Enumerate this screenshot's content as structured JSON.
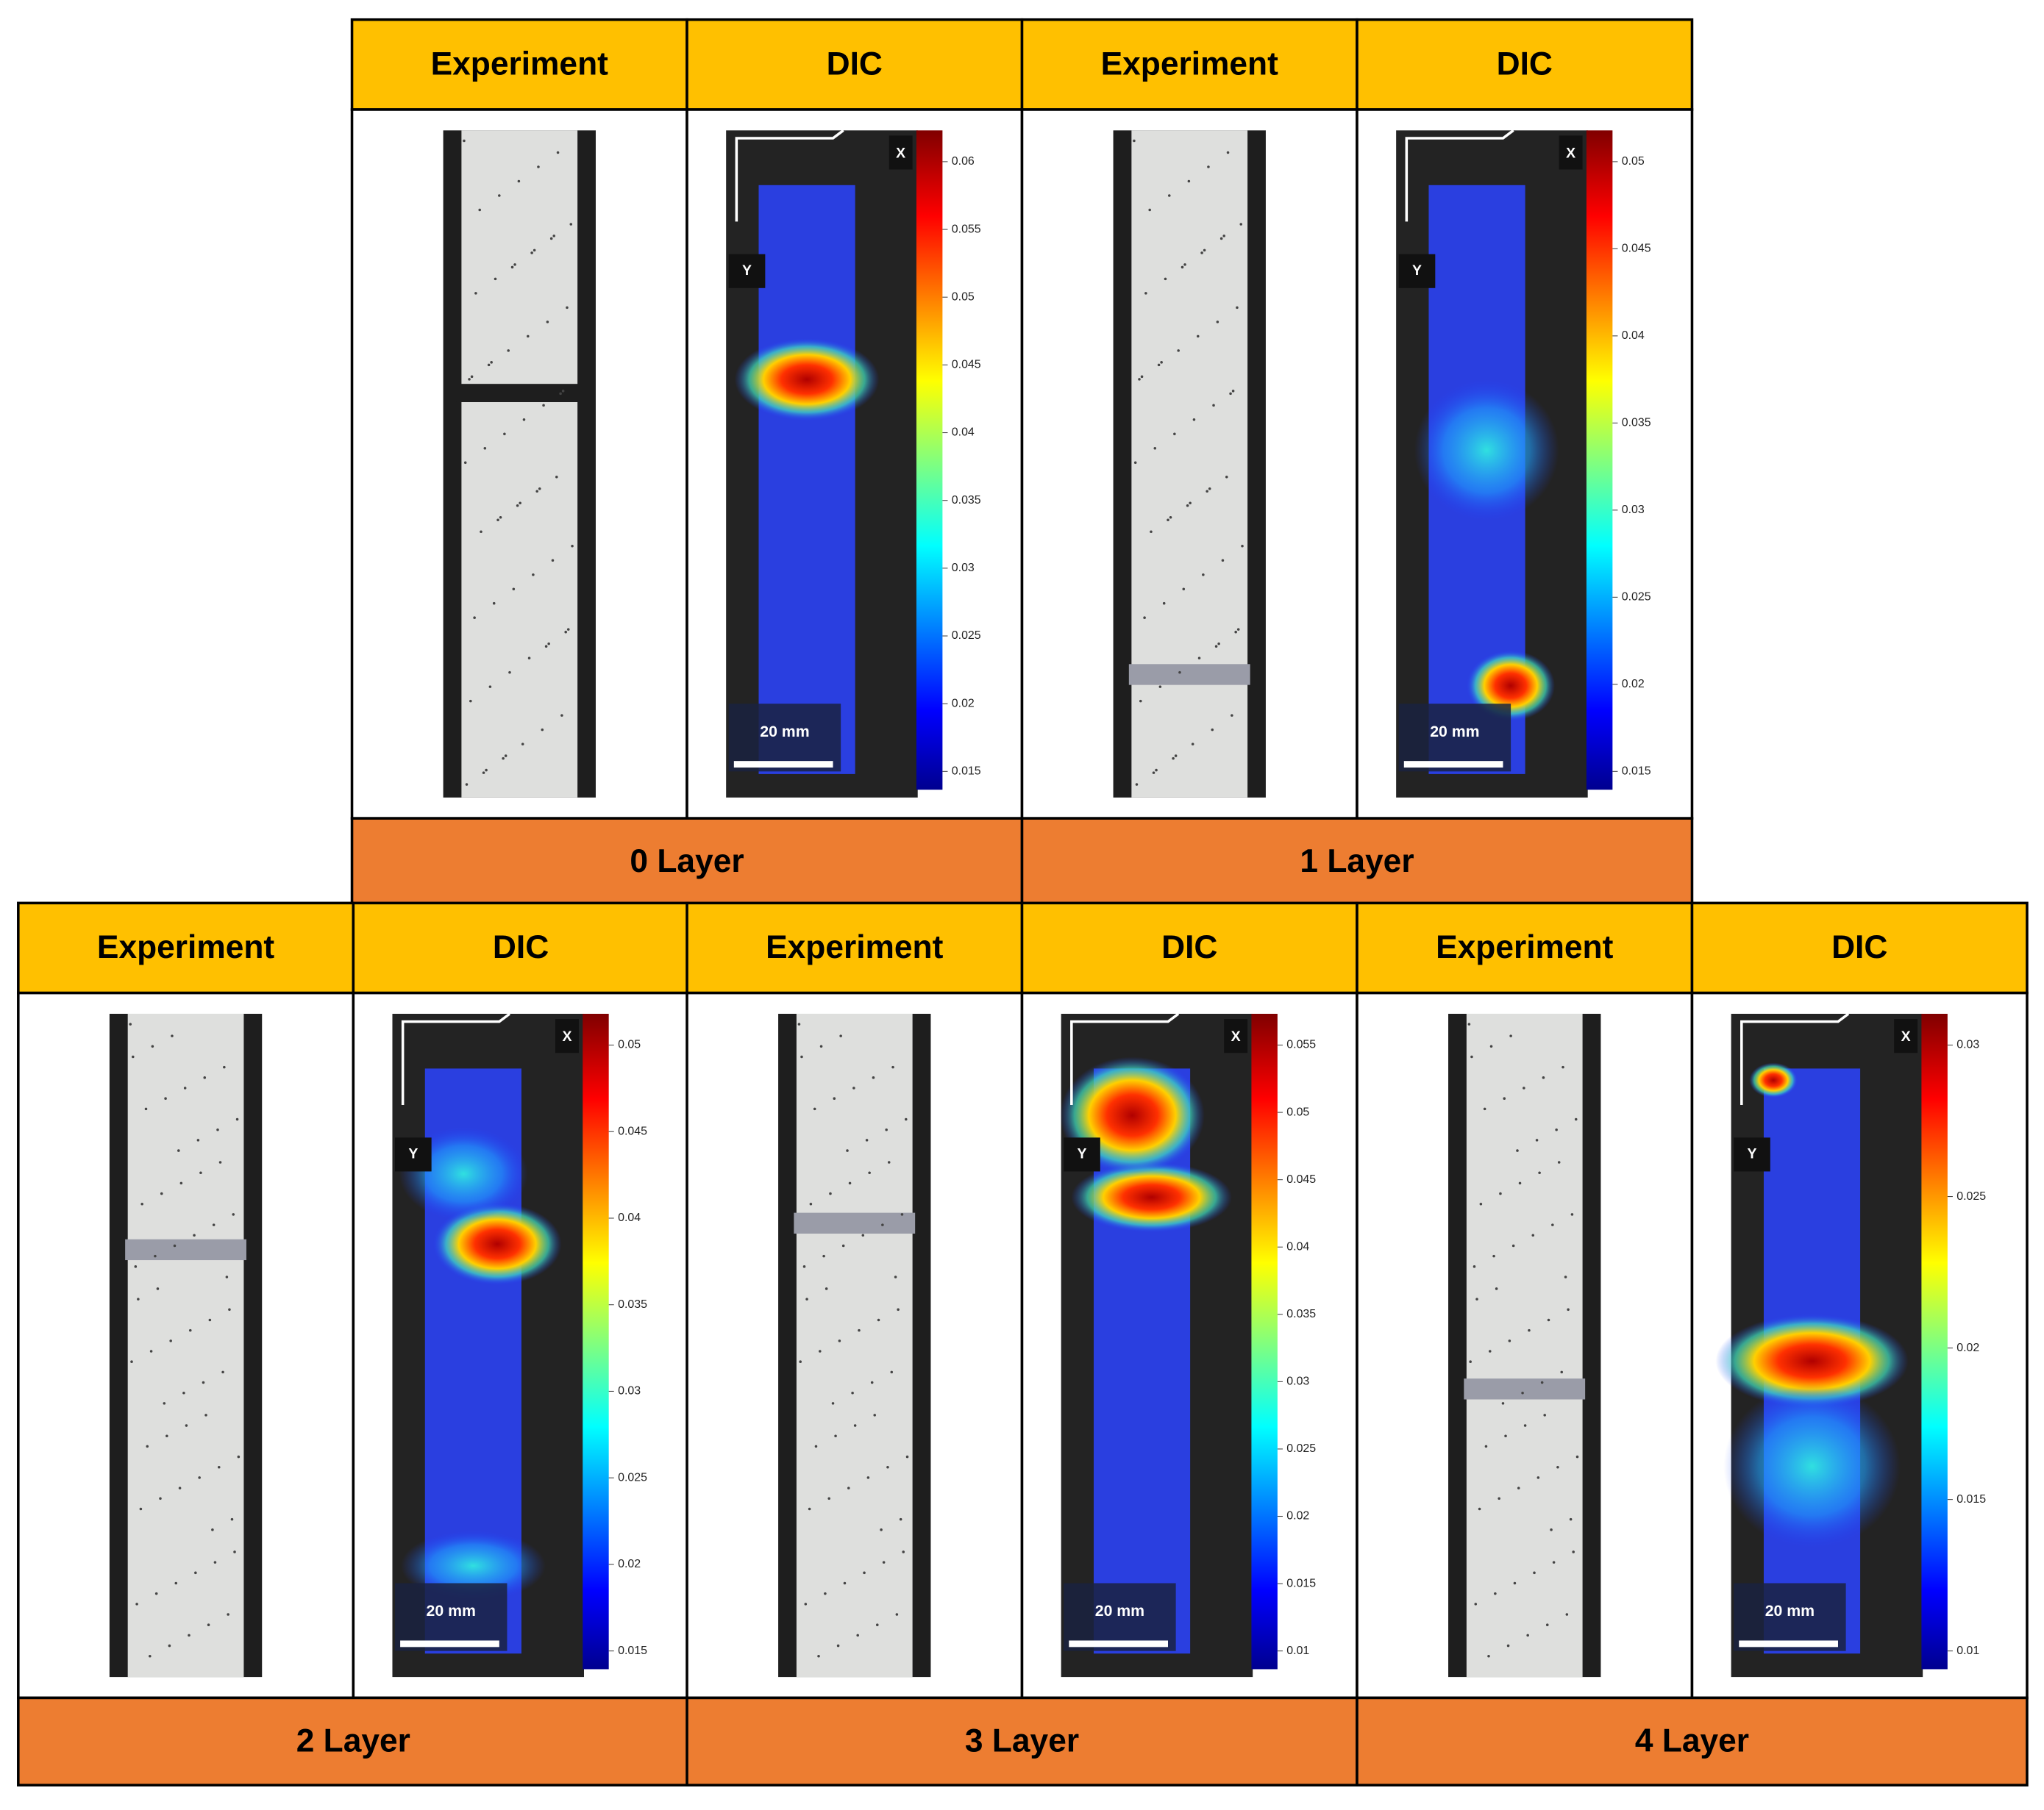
{
  "groups": [
    {
      "label": "0 Layer",
      "experiment_header": "Experiment",
      "dic_header": "DIC",
      "scale_label": "20 mm",
      "x_axis_label": "X",
      "y_axis_label": "Y",
      "colorbar_ticks": [
        "0.06",
        "0.055",
        "0.05",
        "0.045",
        "0.04",
        "0.035",
        "0.03",
        "0.025",
        "0.02",
        "0.015"
      ]
    },
    {
      "label": "1 Layer",
      "experiment_header": "Experiment",
      "dic_header": "DIC",
      "scale_label": "20 mm",
      "x_axis_label": "X",
      "y_axis_label": "Y",
      "colorbar_ticks": [
        "0.05",
        "0.045",
        "0.04",
        "0.035",
        "0.03",
        "0.025",
        "0.02",
        "0.015"
      ]
    },
    {
      "label": "2 Layer",
      "experiment_header": "Experiment",
      "dic_header": "DIC",
      "scale_label": "20 mm",
      "x_axis_label": "X",
      "y_axis_label": "Y",
      "colorbar_ticks": [
        "0.05",
        "0.045",
        "0.04",
        "0.035",
        "0.03",
        "0.025",
        "0.02",
        "0.015"
      ]
    },
    {
      "label": "3 Layer",
      "experiment_header": "Experiment",
      "dic_header": "DIC",
      "scale_label": "20 mm",
      "x_axis_label": "X",
      "y_axis_label": "Y",
      "colorbar_ticks": [
        "0.055",
        "0.05",
        "0.045",
        "0.04",
        "0.035",
        "0.03",
        "0.025",
        "0.02",
        "0.015",
        "0.01"
      ]
    },
    {
      "label": "4 Layer",
      "experiment_header": "Experiment",
      "dic_header": "DIC",
      "scale_label": "20 mm",
      "x_axis_label": "X",
      "y_axis_label": "Y",
      "colorbar_ticks": [
        "0.03",
        "0.025",
        "0.02",
        "0.015",
        "0.01"
      ]
    }
  ]
}
